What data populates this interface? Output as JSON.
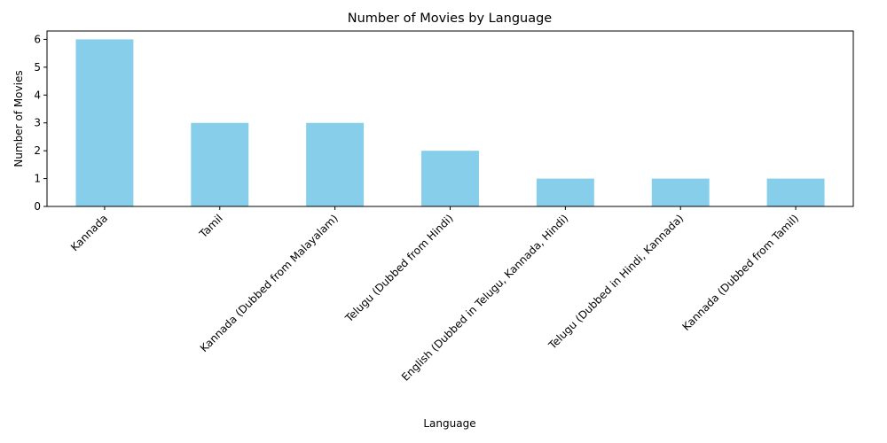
{
  "chart_data": {
    "type": "bar",
    "title": "Number of Movies by Language",
    "xlabel": "Language",
    "ylabel": "Number of Movies",
    "categories": [
      "Kannada",
      "Tamil",
      "Kannada (Dubbed from Malayalam)",
      "Telugu (Dubbed from Hindi)",
      "English (Dubbed in Telugu, Kannada, Hindi)",
      "Telugu (Dubbed in Hindi, Kannada)",
      "Kannada (Dubbed from Tamil)"
    ],
    "values": [
      6,
      3,
      3,
      2,
      1,
      1,
      1
    ],
    "ylim": [
      0,
      6.3
    ],
    "yticks": [
      0,
      1,
      2,
      3,
      4,
      5,
      6
    ],
    "bar_color": "#87ceeb",
    "grid": false,
    "legend": "none"
  }
}
